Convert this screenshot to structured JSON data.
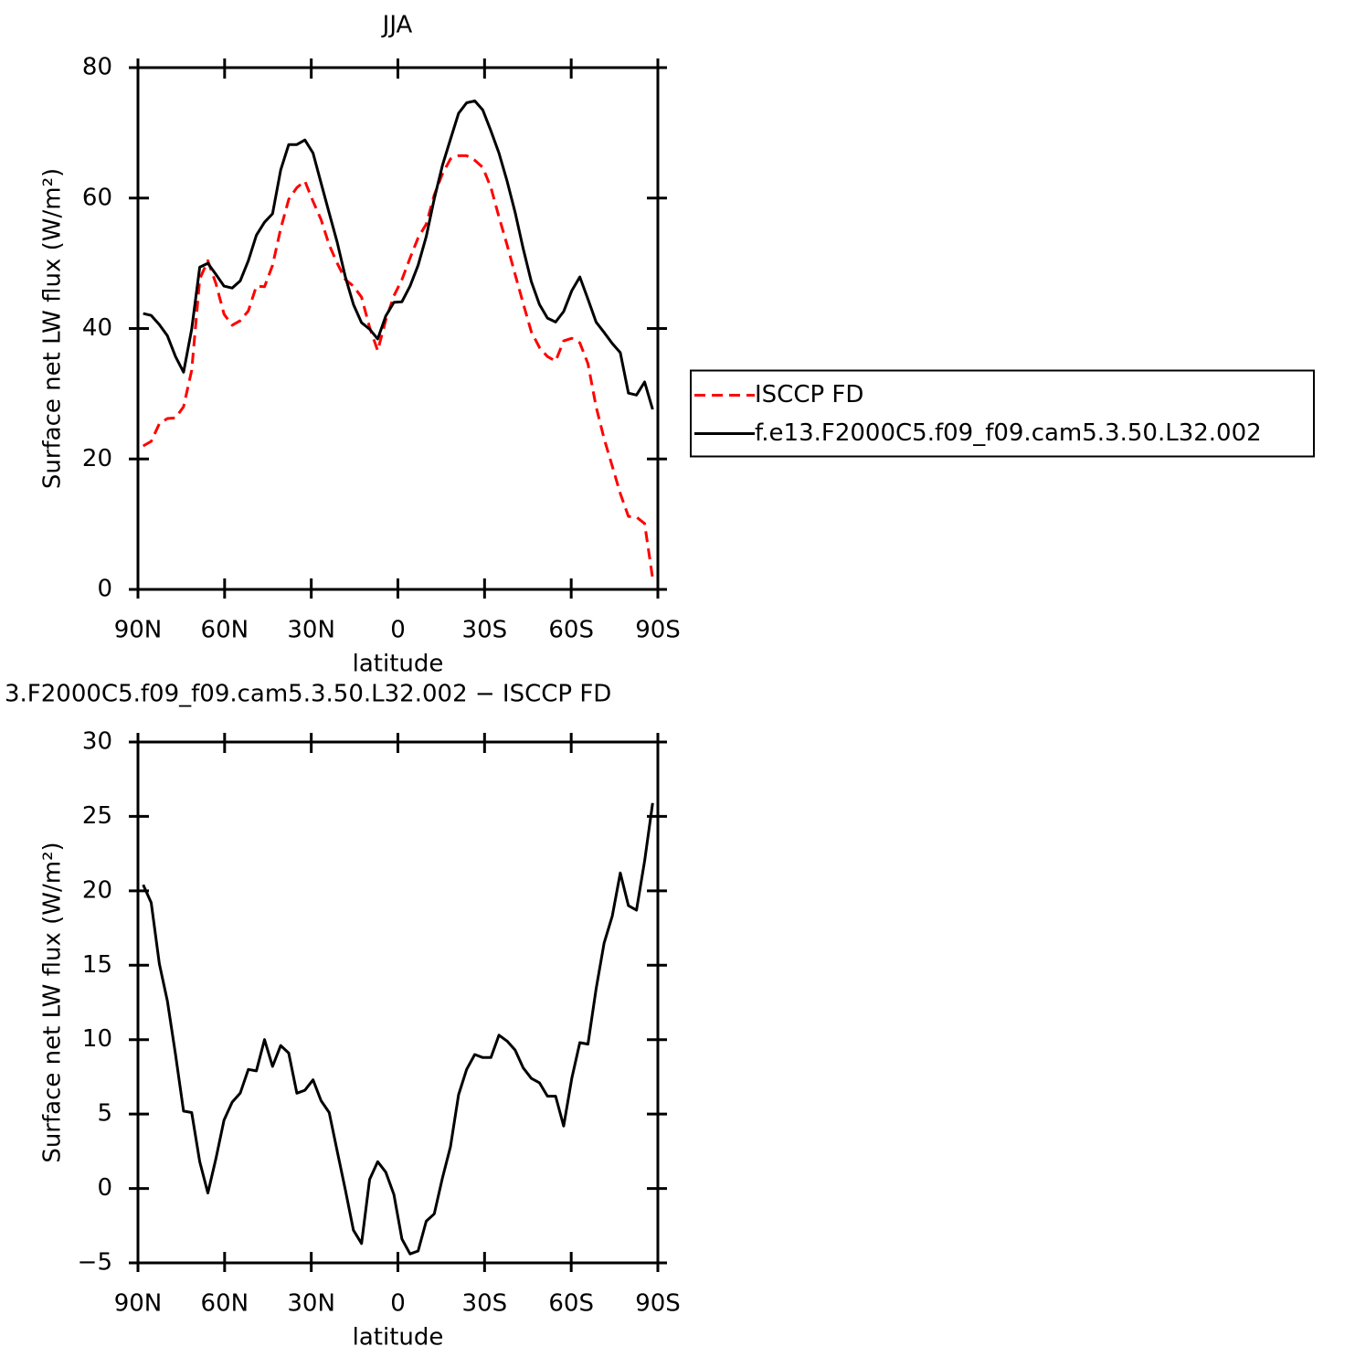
{
  "chart_data": [
    {
      "type": "line",
      "title": "JJA",
      "xlabel": "latitude",
      "ylabel": "Surface net LW flux (W/m²)",
      "x": [
        88.2,
        85.4,
        82.6,
        79.8,
        77,
        74.2,
        71.4,
        68.6,
        65.8,
        63,
        60.2,
        57.4,
        54.6,
        51.8,
        49,
        46.2,
        43.4,
        40.6,
        37.8,
        35,
        32.2,
        29.4,
        26.6,
        23.8,
        21,
        18.2,
        15.4,
        12.6,
        9.8,
        7,
        4.2,
        1.4,
        -1.4,
        -4.2,
        -7,
        -9.8,
        -12.6,
        -15.4,
        -18.2,
        -21,
        -23.8,
        -26.6,
        -29.4,
        -32.2,
        -35,
        -37.8,
        -40.6,
        -43.4,
        -46.2,
        -49,
        -51.8,
        -54.6,
        -57.4,
        -60.2,
        -63,
        -65.8,
        -68.6,
        -71.4,
        -74.2,
        -77,
        -79.8,
        -82.6,
        -85.4,
        -88.2
      ],
      "series": [
        {
          "name": "ISCCP FD",
          "color": "#ff0000",
          "style": "dashed",
          "values": [
            22.0,
            22.7,
            25.4,
            26.2,
            26.3,
            28.0,
            33.6,
            47.6,
            50.4,
            46.9,
            42.2,
            40.5,
            41.2,
            42.7,
            46.5,
            46.4,
            49.7,
            55.3,
            59.8,
            61.6,
            62.6,
            59.5,
            56.7,
            52.8,
            50.0,
            47.5,
            46.5,
            44.8,
            40.2,
            36.6,
            41.3,
            45.0,
            47.5,
            50.8,
            53.9,
            56.0,
            60.5,
            63.7,
            66.0,
            66.5,
            66.5,
            65.8,
            64.7,
            61.6,
            57.1,
            52.8,
            48.3,
            43.8,
            39.5,
            37.1,
            35.7,
            35.0,
            38.1,
            38.5,
            37.8,
            34.6,
            28.0,
            23.1,
            18.9,
            14.7,
            11.2,
            11.1,
            10.1,
            1.7
          ]
        },
        {
          "name": "f.e13.F2000C5.f09_f09.cam5.3.50.L32.002",
          "color": "#000000",
          "style": "solid",
          "values": [
            42.3,
            42.0,
            40.6,
            38.9,
            35.7,
            33.3,
            39.9,
            49.4,
            50.0,
            48.3,
            46.5,
            46.2,
            47.3,
            50.4,
            54.3,
            56.3,
            57.6,
            64.3,
            68.2,
            68.2,
            68.9,
            66.9,
            62.3,
            57.7,
            53.2,
            47.9,
            43.7,
            40.9,
            39.9,
            38.4,
            41.9,
            44.0,
            44.1,
            46.5,
            49.7,
            54.1,
            59.9,
            65.0,
            69.0,
            73.0,
            74.6,
            74.9,
            73.5,
            70.3,
            66.9,
            62.6,
            57.8,
            52.2,
            47.2,
            43.7,
            41.6,
            41.0,
            42.6,
            45.8,
            47.9,
            44.5,
            41.0,
            39.4,
            37.7,
            36.3,
            30.1,
            29.8,
            31.8,
            27.6
          ]
        }
      ],
      "xlim": [
        90,
        -90
      ],
      "xticks": [
        {
          "value": 90,
          "label": "90N"
        },
        {
          "value": 60,
          "label": "60N"
        },
        {
          "value": 30,
          "label": "30N"
        },
        0,
        {
          "value": -30,
          "label": "30S"
        },
        {
          "value": -60,
          "label": "60S"
        },
        {
          "value": -90,
          "label": "90S"
        }
      ],
      "ylim": [
        0,
        80
      ],
      "yticks": [
        0,
        20,
        40,
        60,
        80
      ],
      "legend": "right"
    },
    {
      "type": "line",
      "title": "3.F2000C5.f09_f09.cam5.3.50.L32.002 − ISCCP FD",
      "xlabel": "latitude",
      "ylabel": "Surface net LW flux (W/m²)",
      "x": [
        88.2,
        85.4,
        82.6,
        79.8,
        77,
        74.2,
        71.4,
        68.6,
        65.8,
        63,
        60.2,
        57.4,
        54.6,
        51.8,
        49,
        46.2,
        43.4,
        40.6,
        37.8,
        35,
        32.2,
        29.4,
        26.6,
        23.8,
        21,
        18.2,
        15.4,
        12.6,
        9.8,
        7,
        4.2,
        1.4,
        -1.4,
        -4.2,
        -7,
        -9.8,
        -12.6,
        -15.4,
        -18.2,
        -21,
        -23.8,
        -26.6,
        -29.4,
        -32.2,
        -35,
        -37.8,
        -40.6,
        -43.4,
        -46.2,
        -49,
        -51.8,
        -54.6,
        -57.4,
        -60.2,
        -63,
        -65.8,
        -68.6,
        -71.4,
        -74.2,
        -77,
        -79.8,
        -82.6,
        -85.4,
        -88.2
      ],
      "series": [
        {
          "color": "#000000",
          "style": "solid",
          "values": [
            20.4,
            19.2,
            15.1,
            12.6,
            9.0,
            5.2,
            5.1,
            1.8,
            -0.3,
            2.0,
            4.6,
            5.8,
            6.4,
            8.0,
            7.9,
            10.0,
            8.2,
            9.6,
            9.1,
            6.4,
            6.6,
            7.3,
            5.9,
            5.1,
            2.5,
            -0.1,
            -2.8,
            -3.7,
            0.6,
            1.8,
            1.1,
            -0.4,
            -3.4,
            -4.4,
            -4.2,
            -2.2,
            -1.7,
            0.7,
            2.8,
            6.3,
            8.0,
            9.0,
            8.8,
            8.8,
            10.3,
            9.9,
            9.3,
            8.1,
            7.4,
            7.1,
            6.2,
            6.2,
            4.2,
            7.4,
            9.8,
            9.7,
            13.4,
            16.5,
            18.3,
            21.2,
            19.0,
            18.7,
            22.0,
            25.9
          ]
        }
      ],
      "xlim": [
        90,
        -90
      ],
      "xticks": [
        {
          "value": 90,
          "label": "90N"
        },
        {
          "value": 60,
          "label": "60N"
        },
        {
          "value": 30,
          "label": "30N"
        },
        0,
        {
          "value": -30,
          "label": "30S"
        },
        {
          "value": -60,
          "label": "60S"
        },
        {
          "value": -90,
          "label": "90S"
        }
      ],
      "ylim": [
        -5,
        30
      ],
      "yticks": [
        {
          "value": -5,
          "label": "−5"
        },
        0,
        5,
        10,
        15,
        20,
        25,
        30
      ]
    }
  ]
}
